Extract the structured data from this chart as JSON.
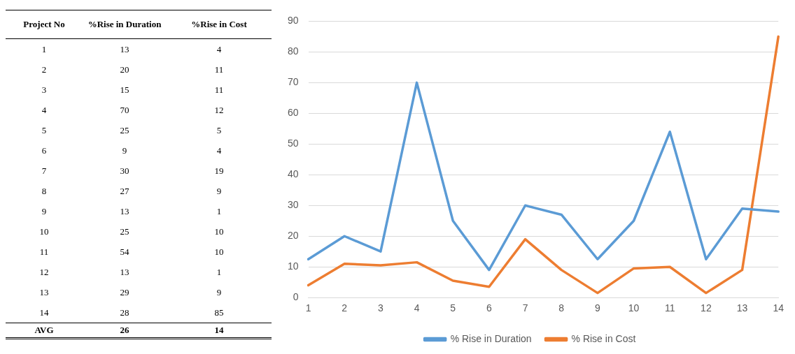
{
  "chart_data": [
    {
      "type": "heatmap",
      "ylabel": "Project No",
      "data_labels": true,
      "categories": [
        "%Rise in Duration",
        "%Rise in Cost"
      ],
      "y_categories": [
        "1",
        "2",
        "3",
        "4",
        "5",
        "6",
        "7",
        "8",
        "9",
        "10",
        "11",
        "12",
        "13",
        "14",
        "AVG"
      ],
      "cells": [
        [
          13,
          4
        ],
        [
          20,
          11
        ],
        [
          15,
          11
        ],
        [
          70,
          12
        ],
        [
          25,
          5
        ],
        [
          9,
          4
        ],
        [
          30,
          19
        ],
        [
          27,
          9
        ],
        [
          13,
          1
        ],
        [
          25,
          10
        ],
        [
          54,
          10
        ],
        [
          13,
          1
        ],
        [
          29,
          9
        ],
        [
          28,
          85
        ],
        [
          26,
          14
        ]
      ]
    },
    {
      "type": "line",
      "categories": [
        "1",
        "2",
        "3",
        "4",
        "5",
        "6",
        "7",
        "8",
        "9",
        "10",
        "11",
        "12",
        "13",
        "14"
      ],
      "series": [
        {
          "name": "% Rise in Duration",
          "color": "#5b9bd5",
          "values": [
            12.5,
            20,
            15,
            70,
            25,
            9,
            30,
            27,
            12.5,
            25,
            54,
            12.5,
            29,
            28
          ]
        },
        {
          "name": "% Rise in Cost",
          "color": "#ed7d31",
          "values": [
            4,
            11,
            10.5,
            11.5,
            5.5,
            3.5,
            19,
            9,
            1.5,
            9.5,
            10,
            1.5,
            9,
            85
          ]
        }
      ],
      "ylim": [
        0,
        90
      ],
      "yticks": [
        0,
        10,
        20,
        30,
        40,
        50,
        60,
        70,
        80,
        90
      ],
      "grid": "y",
      "legend": "bottom",
      "marker": "none",
      "line_style": "solid"
    }
  ]
}
